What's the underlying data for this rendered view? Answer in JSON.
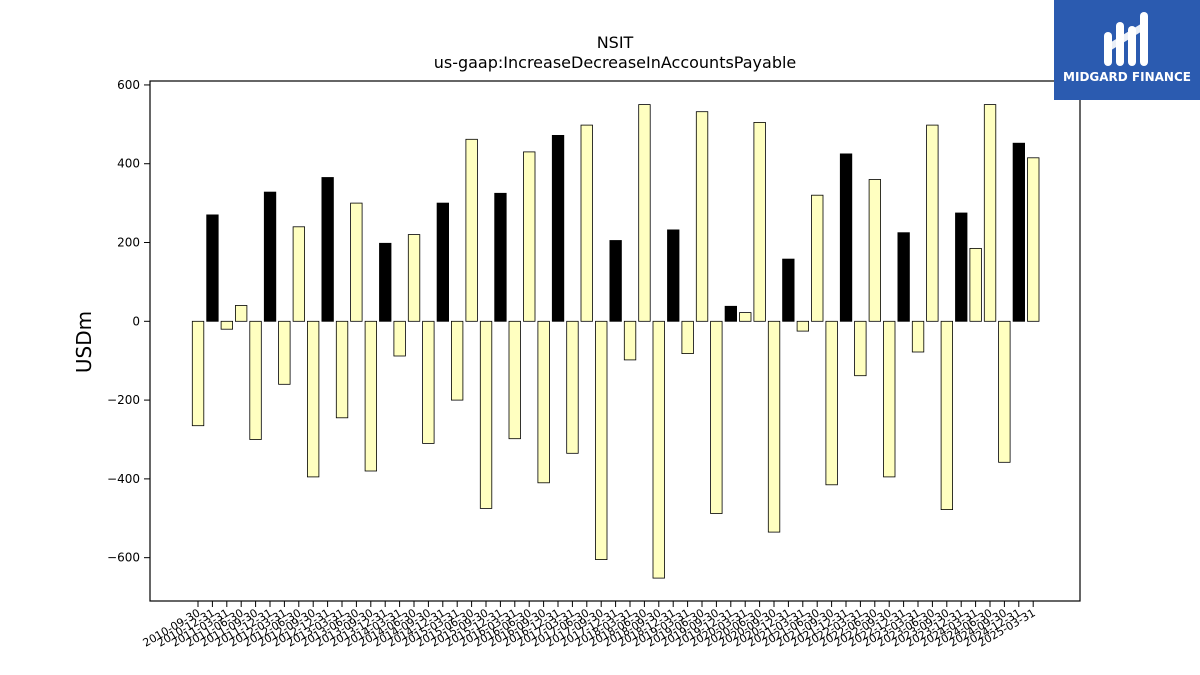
{
  "logo": {
    "text": "MIDGARD FINANCE",
    "icon": "midgard-logo-icon",
    "background": "#2b5bb0"
  },
  "chart_data": {
    "type": "bar",
    "title": "NSIT",
    "subtitle": "us-gaap:IncreaseDecreaseInAccountsPayable",
    "xlabel": "",
    "ylabel": "USDm",
    "ylim": [
      -710,
      610
    ],
    "yticks": [
      -600,
      -400,
      -200,
      0,
      200,
      400,
      600
    ],
    "grid": false,
    "legend": "none",
    "colors": {
      "positive_annual": "#000000",
      "quarterly": "#ffffc0",
      "edge": "#000000"
    },
    "categories": [
      "2010-09-30",
      "2010-12-31",
      "2011-03-31",
      "2011-06-30",
      "2011-09-30",
      "2011-12-31",
      "2012-03-31",
      "2012-06-30",
      "2012-09-30",
      "2012-12-31",
      "2013-03-31",
      "2013-06-30",
      "2013-09-30",
      "2013-12-31",
      "2014-03-31",
      "2014-06-30",
      "2014-09-30",
      "2014-12-31",
      "2015-03-31",
      "2015-06-30",
      "2015-09-30",
      "2015-12-31",
      "2016-03-31",
      "2016-06-30",
      "2016-09-30",
      "2016-12-31",
      "2017-03-31",
      "2017-06-30",
      "2017-09-30",
      "2017-12-31",
      "2018-03-31",
      "2018-06-30",
      "2018-09-30",
      "2018-12-31",
      "2019-03-31",
      "2019-06-30",
      "2019-09-30",
      "2019-12-31",
      "2020-03-31",
      "2020-06-30",
      "2020-09-30",
      "2020-12-31",
      "2021-03-31",
      "2021-06-30",
      "2021-09-30",
      "2021-12-31",
      "2022-03-31",
      "2022-06-30",
      "2022-09-30",
      "2022-12-31",
      "2023-03-31",
      "2023-06-30",
      "2023-09-30",
      "2023-12-31",
      "2024-03-31",
      "2024-06-30",
      "2024-09-30",
      "2024-12-31",
      "2025-03-31"
    ],
    "values": [
      -265,
      270,
      -20,
      40,
      -300,
      328,
      -160,
      240,
      -395,
      365,
      -245,
      300,
      -380,
      198,
      -88,
      220,
      -310,
      300,
      -200,
      462,
      -475,
      325,
      -298,
      430,
      -410,
      472,
      -335,
      498,
      -605,
      205,
      -98,
      550,
      -652,
      232,
      -82,
      532,
      -488,
      38,
      22,
      505,
      -535,
      158,
      -25,
      320,
      -415,
      425,
      -138,
      360,
      -395,
      225,
      -78,
      498,
      -478,
      275,
      185,
      550,
      -358,
      452,
      415
    ],
    "bar_style": [
      "q",
      "a",
      "q",
      "q",
      "q",
      "a",
      "q",
      "q",
      "q",
      "a",
      "q",
      "q",
      "q",
      "a",
      "q",
      "q",
      "q",
      "a",
      "q",
      "q",
      "q",
      "a",
      "q",
      "q",
      "q",
      "a",
      "q",
      "q",
      "q",
      "a",
      "q",
      "q",
      "q",
      "a",
      "q",
      "q",
      "q",
      "a",
      "q",
      "q",
      "q",
      "a",
      "q",
      "q",
      "q",
      "a",
      "q",
      "q",
      "q",
      "a",
      "q",
      "q",
      "q",
      "a",
      "q",
      "q",
      "q",
      "a",
      "q"
    ]
  }
}
